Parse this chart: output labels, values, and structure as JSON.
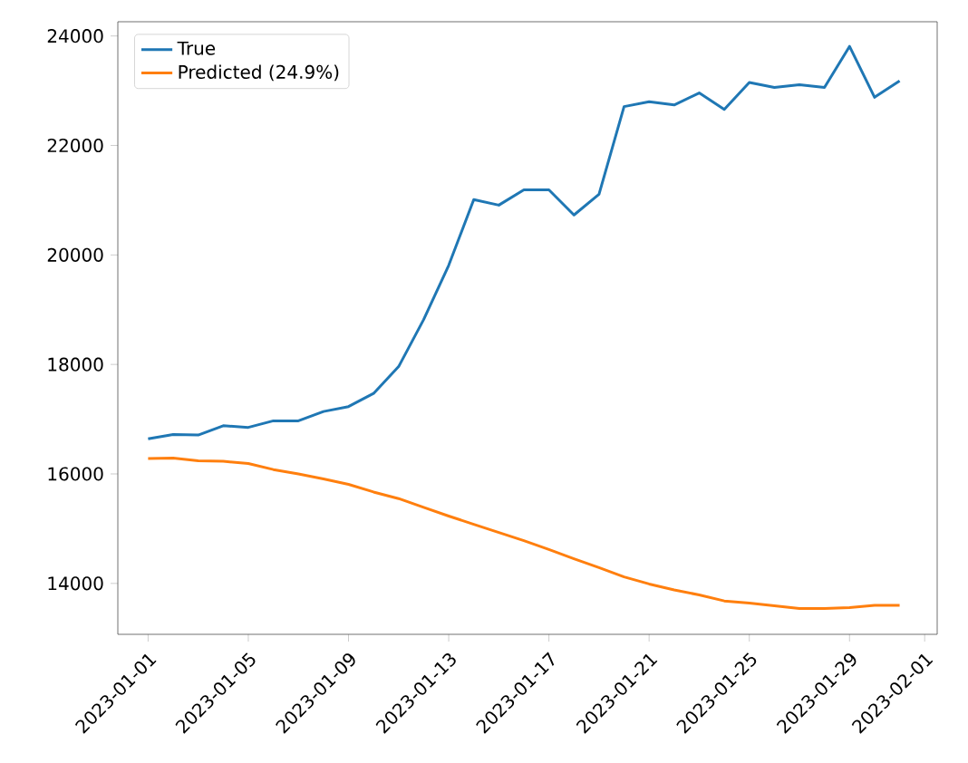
{
  "chart_data": {
    "type": "line",
    "x": [
      "2023-01-01",
      "2023-01-02",
      "2023-01-03",
      "2023-01-04",
      "2023-01-05",
      "2023-01-06",
      "2023-01-07",
      "2023-01-08",
      "2023-01-09",
      "2023-01-10",
      "2023-01-11",
      "2023-01-12",
      "2023-01-13",
      "2023-01-14",
      "2023-01-15",
      "2023-01-16",
      "2023-01-17",
      "2023-01-18",
      "2023-01-19",
      "2023-01-20",
      "2023-01-21",
      "2023-01-22",
      "2023-01-23",
      "2023-01-24",
      "2023-01-25",
      "2023-01-26",
      "2023-01-27",
      "2023-01-28",
      "2023-01-29",
      "2023-01-30",
      "2023-01-31"
    ],
    "series": [
      {
        "name": "True",
        "color": "#1f77b4",
        "values": [
          16640,
          16720,
          16710,
          16880,
          16850,
          16970,
          16970,
          17140,
          17230,
          17470,
          17960,
          18820,
          19810,
          21010,
          20910,
          21190,
          21190,
          20730,
          21110,
          22710,
          22800,
          22740,
          22960,
          22660,
          23150,
          23060,
          23110,
          23060,
          23810,
          22880,
          23180
        ]
      },
      {
        "name": "Predicted (24.9%)",
        "color": "#ff7f0e",
        "values": [
          16280,
          16290,
          16240,
          16230,
          16190,
          16080,
          16000,
          15910,
          15810,
          15670,
          15550,
          15390,
          15230,
          15080,
          14930,
          14780,
          14620,
          14450,
          14290,
          14120,
          13990,
          13880,
          13790,
          13680,
          13640,
          13590,
          13540,
          13540,
          13560,
          13600,
          13600
        ]
      }
    ],
    "xlim": [
      "2022-12-30T19:00",
      "2023-02-01T12:00"
    ],
    "xticks": [
      "2023-01-01",
      "2023-01-05",
      "2023-01-09",
      "2023-01-13",
      "2023-01-17",
      "2023-01-21",
      "2023-01-25",
      "2023-01-29",
      "2023-02-01"
    ],
    "ylim": [
      13070,
      24260
    ],
    "yticks": [
      14000,
      16000,
      18000,
      20000,
      22000,
      24000
    ],
    "legend": "top left",
    "grid": false,
    "marker": "none",
    "line_style": "solid"
  }
}
